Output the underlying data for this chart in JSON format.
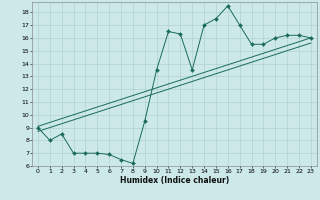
{
  "title": "",
  "xlabel": "Humidex (Indice chaleur)",
  "ylabel": "",
  "bg_color": "#cce8e8",
  "line_color": "#1a6b5a",
  "grid_color": "#aacece",
  "xlim": [
    -0.5,
    23.5
  ],
  "ylim": [
    6,
    18.8
  ],
  "xticks": [
    0,
    1,
    2,
    3,
    4,
    5,
    6,
    7,
    8,
    9,
    10,
    11,
    12,
    13,
    14,
    15,
    16,
    17,
    18,
    19,
    20,
    21,
    22,
    23
  ],
  "yticks": [
    6,
    7,
    8,
    9,
    10,
    11,
    12,
    13,
    14,
    15,
    16,
    17,
    18
  ],
  "main_series": [
    9.0,
    8.0,
    8.5,
    7.0,
    7.0,
    7.0,
    6.9,
    6.5,
    6.2,
    9.5,
    13.5,
    16.5,
    16.3,
    13.5,
    17.0,
    17.5,
    18.5,
    17.0,
    15.5,
    15.5,
    16.0,
    16.2,
    16.2,
    16.0
  ],
  "linear1_start_x": 0,
  "linear1_start_y": 9.1,
  "linear1_end_x": 23,
  "linear1_end_y": 16.0,
  "linear2_start_x": 0,
  "linear2_start_y": 8.7,
  "linear2_end_x": 23,
  "linear2_end_y": 15.6
}
